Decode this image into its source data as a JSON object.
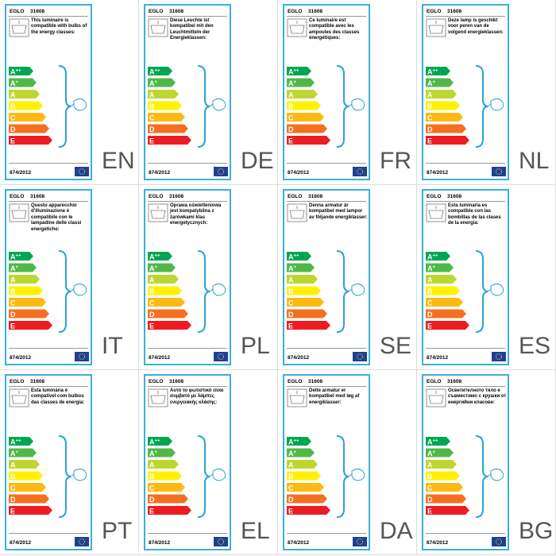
{
  "brand": "EGLO",
  "model": "31608",
  "regulation": "874/2012",
  "classes": [
    {
      "letter": "A",
      "sup": "++"
    },
    {
      "letter": "A",
      "sup": "+"
    },
    {
      "letter": "A",
      "sup": ""
    },
    {
      "letter": "B",
      "sup": ""
    },
    {
      "letter": "C",
      "sup": ""
    },
    {
      "letter": "D",
      "sup": ""
    },
    {
      "letter": "E",
      "sup": ""
    }
  ],
  "cards": [
    {
      "lang": "EN",
      "text": "This luminaire is compatible with bulbs of the energy classes:"
    },
    {
      "lang": "DE",
      "text": "Diese Leuchte ist kompatibel mit den Leuchtmitteln der Energieklassen:"
    },
    {
      "lang": "FR",
      "text": "Ce luminaire est compatible avec les ampoules des classes énergétiques:"
    },
    {
      "lang": "NL",
      "text": "Deze lamp is geschikt voor peren van de volgend energieklassen:"
    },
    {
      "lang": "IT",
      "text": "Questo apparecchio d'illuminazione è compatibile con le lampadine delle classi energetiche:"
    },
    {
      "lang": "PL",
      "text": "Oprawa oświetleniowa jest kompatybilna z żarówkami klas energetycznych:"
    },
    {
      "lang": "SE",
      "text": "Denna armatur är kompatibel med lampor av följande energiklasser:"
    },
    {
      "lang": "ES",
      "text": "Esta luminaria es compatible con las bombillas de las clases de la energía:"
    },
    {
      "lang": "PT",
      "text": "Esta luminária é compatível com bulbos das classes de energia:"
    },
    {
      "lang": "EL",
      "text": "Αυτό το φωτιστικό είναι συμβατό με λάμπες ενεργειακής κλάσης:"
    },
    {
      "lang": "DA",
      "text": "Dette armatur er kompatibel med løg af energiklasser:"
    },
    {
      "lang": "BG",
      "text": "Осветителното тяло е съвместимо с крушки от енергийни класове:"
    }
  ]
}
